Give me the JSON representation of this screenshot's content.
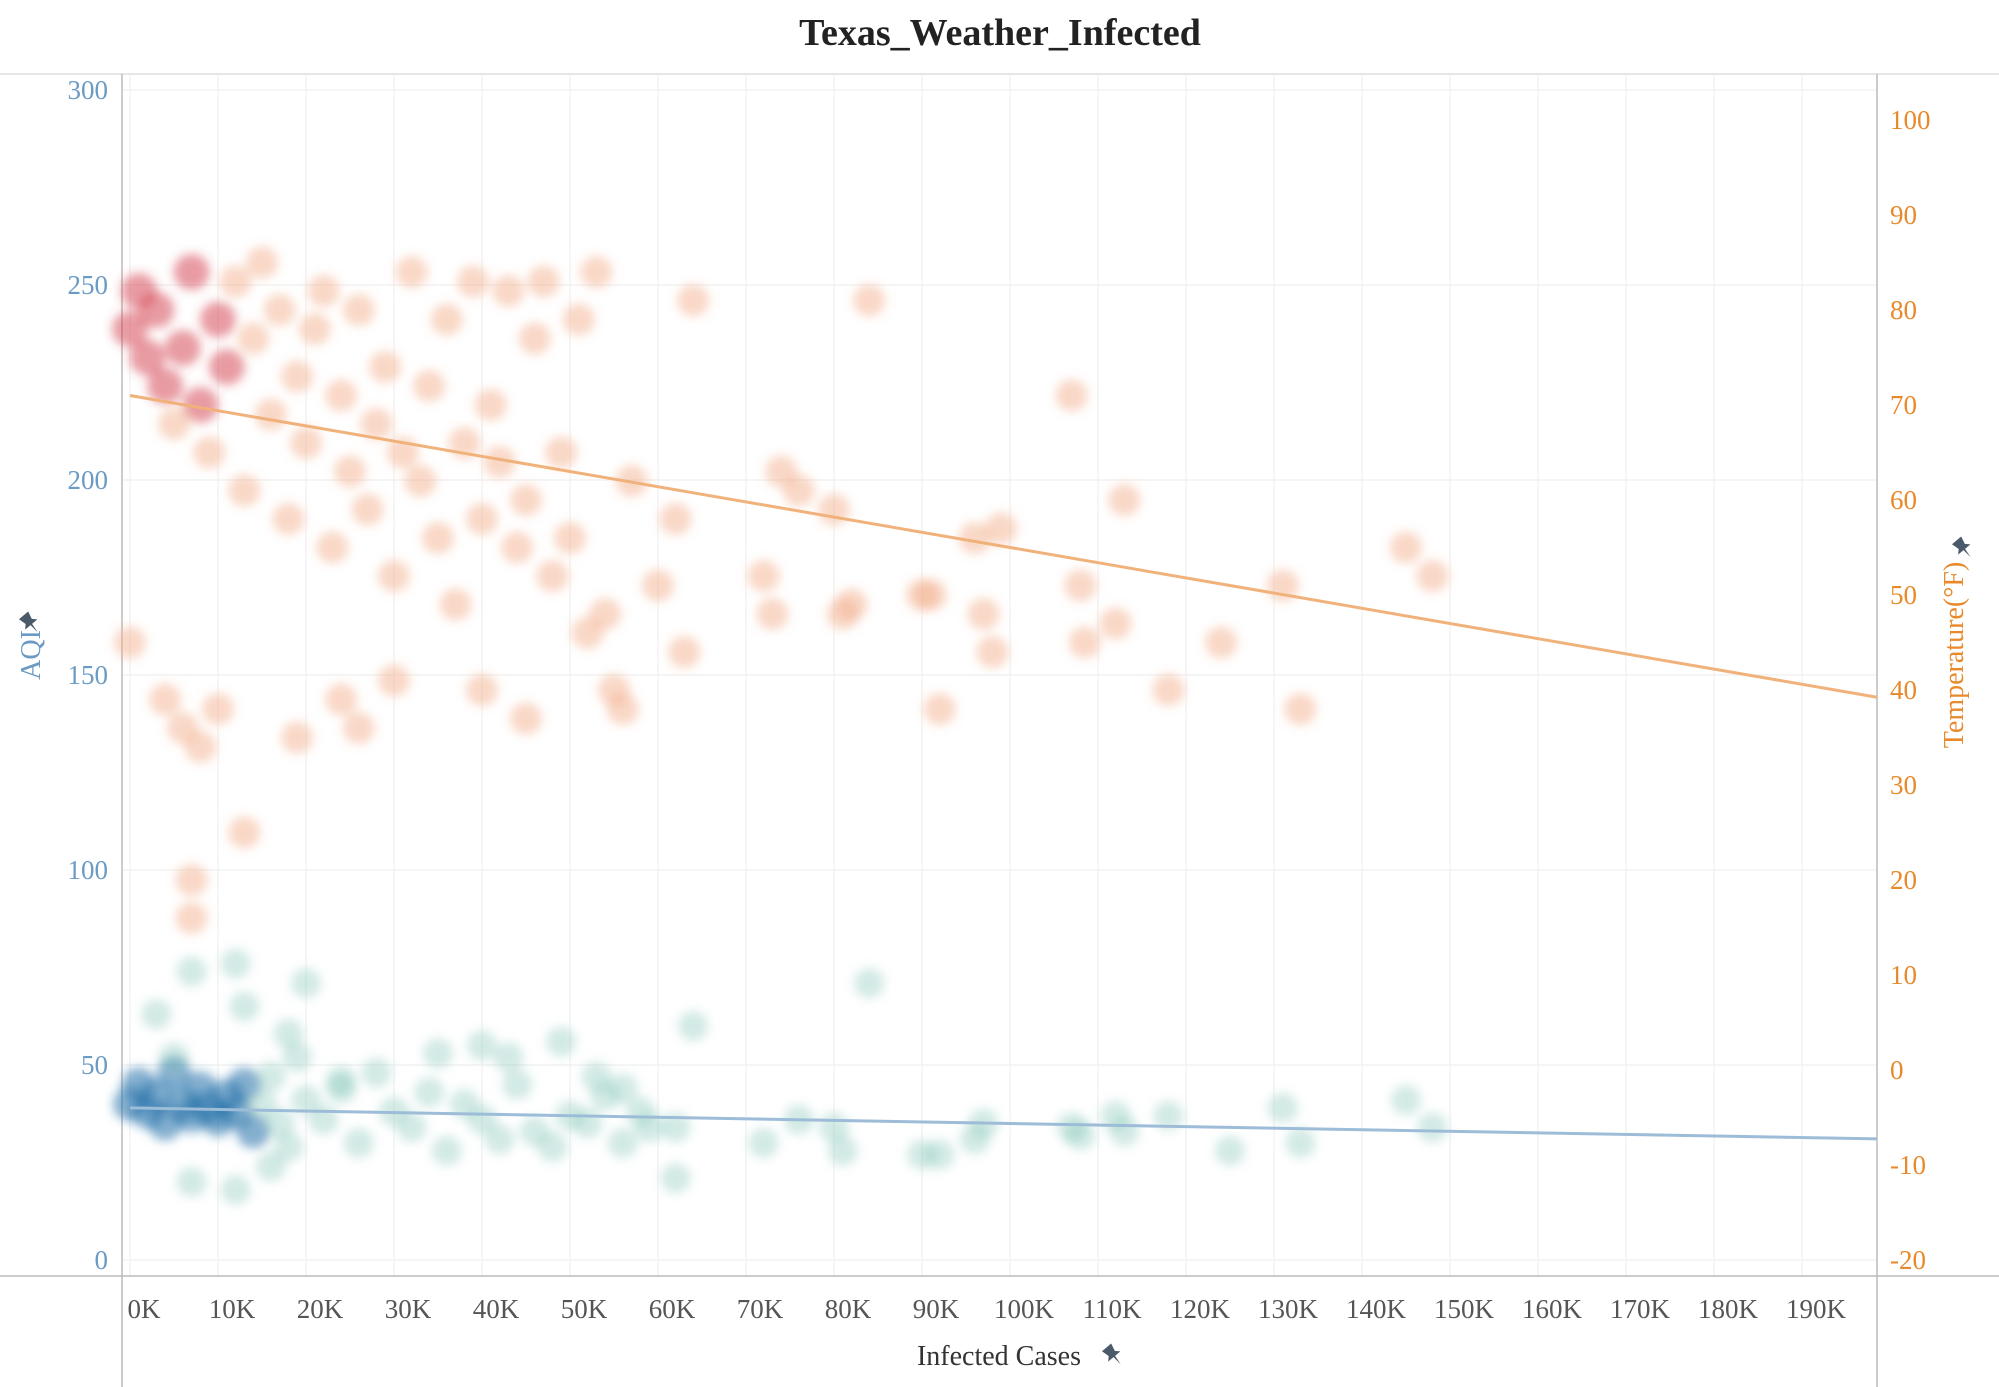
{
  "chart_data": {
    "type": "scatter",
    "title": "Texas_Weather_Infected",
    "xlabel": "Infected Cases",
    "ylabel_left": "AQI",
    "ylabel_right": "Temperature(°F)",
    "x_ticks": [
      "0K",
      "10K",
      "20K",
      "30K",
      "40K",
      "50K",
      "60K",
      "70K",
      "80K",
      "90K",
      "100K",
      "110K",
      "120K",
      "130K",
      "140K",
      "150K",
      "160K",
      "170K",
      "180K",
      "190K"
    ],
    "y_left_ticks": [
      "0",
      "50",
      "100",
      "150",
      "200",
      "250",
      "300"
    ],
    "y_right_ticks": [
      "-20",
      "-10",
      "0",
      "10",
      "20",
      "30",
      "40",
      "50",
      "60",
      "70",
      "80",
      "90",
      "100"
    ],
    "xlim": [
      0,
      200000
    ],
    "ylim_left": [
      0,
      300
    ],
    "ylim_right": [
      -20,
      100
    ],
    "grid": true,
    "colors": {
      "aqi": "#6b9ac4",
      "temperature": "#e8892b",
      "aqi_points": "#7fc3b4",
      "aqi_dense": "#1f6fa8",
      "temp_points": "#f3b28f",
      "temp_dense": "#d23a48",
      "aqi_trend": "#9dbcd8",
      "temp_trend": "#f0b27a"
    },
    "series": [
      {
        "name": "AQI",
        "axis": "left",
        "points": [
          [
            0,
            40
          ],
          [
            1000,
            45
          ],
          [
            2000,
            38
          ],
          [
            3000,
            42
          ],
          [
            4000,
            35
          ],
          [
            5000,
            48
          ],
          [
            6000,
            40
          ],
          [
            7000,
            37
          ],
          [
            8000,
            44
          ],
          [
            9000,
            39
          ],
          [
            10000,
            36
          ],
          [
            11000,
            42
          ],
          [
            12000,
            38
          ],
          [
            13000,
            45
          ],
          [
            14000,
            33
          ],
          [
            15000,
            40
          ],
          [
            16000,
            47
          ],
          [
            17000,
            35
          ],
          [
            18000,
            29
          ],
          [
            19000,
            52
          ],
          [
            20000,
            41
          ],
          [
            22000,
            36
          ],
          [
            24000,
            44
          ],
          [
            26000,
            30
          ],
          [
            28000,
            48
          ],
          [
            30000,
            38
          ],
          [
            32000,
            34
          ],
          [
            34000,
            43
          ],
          [
            36000,
            28
          ],
          [
            38000,
            40
          ],
          [
            40000,
            36
          ],
          [
            42000,
            31
          ],
          [
            44000,
            45
          ],
          [
            46000,
            33
          ],
          [
            48000,
            29
          ],
          [
            50000,
            37
          ],
          [
            52000,
            35
          ],
          [
            54000,
            42
          ],
          [
            56000,
            30
          ],
          [
            58000,
            38
          ],
          [
            62000,
            34
          ],
          [
            64000,
            60
          ],
          [
            72000,
            30
          ],
          [
            76000,
            36
          ],
          [
            80000,
            34
          ],
          [
            81000,
            28
          ],
          [
            84000,
            71
          ],
          [
            90000,
            27
          ],
          [
            92000,
            27
          ],
          [
            96000,
            31
          ],
          [
            97000,
            35
          ],
          [
            107000,
            34
          ],
          [
            108000,
            32
          ],
          [
            112000,
            37
          ],
          [
            113000,
            33
          ],
          [
            118000,
            37
          ],
          [
            125000,
            28
          ],
          [
            131000,
            39
          ],
          [
            133000,
            30
          ],
          [
            145000,
            41
          ],
          [
            148000,
            34
          ],
          [
            3000,
            63
          ],
          [
            5000,
            52
          ],
          [
            7000,
            74
          ],
          [
            12000,
            76
          ],
          [
            13000,
            65
          ],
          [
            18000,
            58
          ],
          [
            20000,
            71
          ],
          [
            24000,
            46
          ],
          [
            35000,
            53
          ],
          [
            40000,
            55
          ],
          [
            43000,
            52
          ],
          [
            49000,
            56
          ],
          [
            53000,
            47
          ],
          [
            56000,
            44
          ],
          [
            59000,
            34
          ],
          [
            62000,
            21
          ],
          [
            7000,
            20
          ],
          [
            12000,
            18
          ],
          [
            16000,
            24
          ]
        ]
      },
      {
        "name": "Temperature(°F)",
        "axis": "right",
        "points": [
          [
            0,
            78
          ],
          [
            1000,
            82
          ],
          [
            2000,
            75
          ],
          [
            3000,
            80
          ],
          [
            4000,
            72
          ],
          [
            5000,
            68
          ],
          [
            6000,
            76
          ],
          [
            7000,
            84
          ],
          [
            8000,
            70
          ],
          [
            9000,
            65
          ],
          [
            10000,
            79
          ],
          [
            11000,
            74
          ],
          [
            12000,
            83
          ],
          [
            13000,
            61
          ],
          [
            14000,
            77
          ],
          [
            15000,
            85
          ],
          [
            16000,
            69
          ],
          [
            17000,
            80
          ],
          [
            18000,
            58
          ],
          [
            19000,
            73
          ],
          [
            20000,
            66
          ],
          [
            21000,
            78
          ],
          [
            22000,
            82
          ],
          [
            23000,
            55
          ],
          [
            24000,
            71
          ],
          [
            25000,
            63
          ],
          [
            26000,
            80
          ],
          [
            27000,
            59
          ],
          [
            28000,
            68
          ],
          [
            29000,
            74
          ],
          [
            30000,
            52
          ],
          [
            31000,
            65
          ],
          [
            32000,
            84
          ],
          [
            33000,
            62
          ],
          [
            34000,
            72
          ],
          [
            35000,
            56
          ],
          [
            36000,
            79
          ],
          [
            37000,
            49
          ],
          [
            38000,
            66
          ],
          [
            39000,
            83
          ],
          [
            40000,
            58
          ],
          [
            41000,
            70
          ],
          [
            42000,
            64
          ],
          [
            43000,
            82
          ],
          [
            44000,
            55
          ],
          [
            45000,
            60
          ],
          [
            46000,
            77
          ],
          [
            47000,
            83
          ],
          [
            48000,
            52
          ],
          [
            49000,
            65
          ],
          [
            50000,
            56
          ],
          [
            51000,
            79
          ],
          [
            52000,
            46
          ],
          [
            53000,
            84
          ],
          [
            54000,
            48
          ],
          [
            55000,
            40
          ],
          [
            56000,
            38
          ],
          [
            57000,
            62
          ],
          [
            60000,
            51
          ],
          [
            62000,
            58
          ],
          [
            63000,
            44
          ],
          [
            64000,
            81
          ],
          [
            72000,
            52
          ],
          [
            73000,
            48
          ],
          [
            74000,
            63
          ],
          [
            76000,
            61
          ],
          [
            80000,
            59
          ],
          [
            81000,
            48
          ],
          [
            82000,
            49
          ],
          [
            84000,
            81
          ],
          [
            90000,
            50
          ],
          [
            91000,
            50
          ],
          [
            92000,
            38
          ],
          [
            96000,
            56
          ],
          [
            97000,
            48
          ],
          [
            98000,
            44
          ],
          [
            99000,
            57
          ],
          [
            107000,
            71
          ],
          [
            108000,
            51
          ],
          [
            108500,
            45
          ],
          [
            112000,
            47
          ],
          [
            113000,
            60
          ],
          [
            118000,
            40
          ],
          [
            124000,
            45
          ],
          [
            131000,
            51
          ],
          [
            133000,
            38
          ],
          [
            145000,
            55
          ],
          [
            148000,
            52
          ],
          [
            0,
            45
          ],
          [
            4000,
            39
          ],
          [
            6000,
            36
          ],
          [
            8000,
            34
          ],
          [
            10000,
            38
          ],
          [
            13000,
            25
          ],
          [
            7000,
            20
          ],
          [
            7000,
            16
          ],
          [
            19000,
            35
          ],
          [
            24000,
            39
          ],
          [
            26000,
            36
          ],
          [
            30000,
            41
          ],
          [
            40000,
            40
          ],
          [
            45000,
            37
          ]
        ]
      }
    ],
    "trend_lines": [
      {
        "series": "AQI",
        "x": [
          0,
          200000
        ],
        "y": [
          39,
          31
        ]
      },
      {
        "series": "Temperature(°F)",
        "x": [
          0,
          200000
        ],
        "y": [
          71,
          39
        ]
      }
    ]
  }
}
